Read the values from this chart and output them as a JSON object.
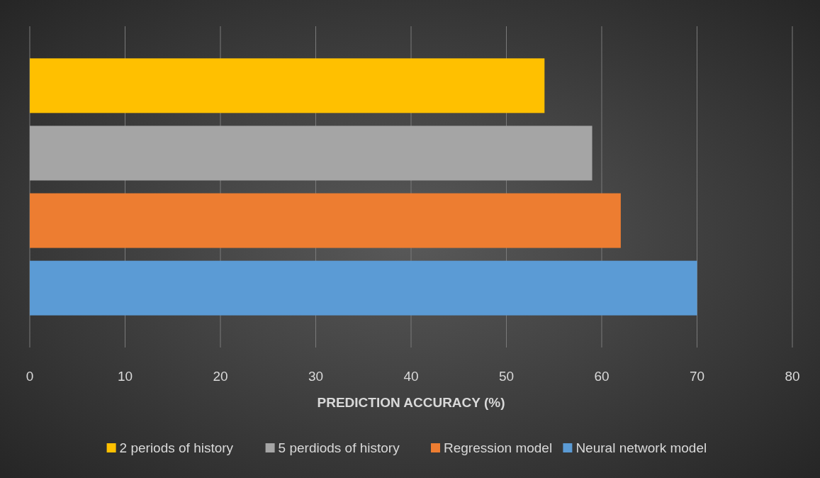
{
  "chart_data": {
    "type": "bar",
    "orientation": "horizontal",
    "categories": [
      null
    ],
    "series": [
      {
        "name": "2 periods of history",
        "color": "#ffc000",
        "values": [
          54
        ]
      },
      {
        "name": "5 perdiods of history",
        "color": "#a5a5a5",
        "values": [
          59
        ]
      },
      {
        "name": "Regression model",
        "color": "#ed7d31",
        "values": [
          62
        ]
      },
      {
        "name": "Neural network model",
        "color": "#5b9bd5",
        "values": [
          70
        ]
      }
    ],
    "xlabel": "PREDICTION ACCURACY (%)",
    "xlim": [
      0,
      80
    ],
    "xticks": [
      0,
      10,
      20,
      30,
      40,
      50,
      60,
      70,
      80
    ],
    "grid": "x",
    "legend": "bottom"
  }
}
